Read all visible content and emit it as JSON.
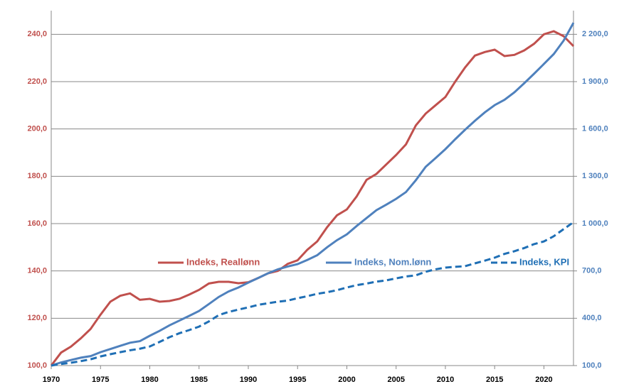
{
  "chart_data": {
    "type": "line",
    "x": [
      1970,
      1971,
      1972,
      1973,
      1974,
      1975,
      1976,
      1977,
      1978,
      1979,
      1980,
      1981,
      1982,
      1983,
      1984,
      1985,
      1986,
      1987,
      1988,
      1989,
      1990,
      1991,
      1992,
      1993,
      1994,
      1995,
      1996,
      1997,
      1998,
      1999,
      2000,
      2001,
      2002,
      2003,
      2004,
      2005,
      2006,
      2007,
      2008,
      2009,
      2010,
      2011,
      2012,
      2013,
      2014,
      2015,
      2016,
      2017,
      2018,
      2019,
      2020,
      2021,
      2022,
      2023
    ],
    "xlim": [
      1970,
      2023
    ],
    "xticks": [
      1970,
      1975,
      1980,
      1985,
      1990,
      1995,
      2000,
      2005,
      2010,
      2015,
      2020
    ],
    "ylim": [
      100,
      250
    ],
    "yticks": [
      {
        "value": 100,
        "label": "100,0"
      },
      {
        "value": 120,
        "label": "120,0"
      },
      {
        "value": 140,
        "label": "140,0"
      },
      {
        "value": 160,
        "label": "160,0"
      },
      {
        "value": 180,
        "label": "180,0"
      },
      {
        "value": 200,
        "label": "200,0"
      },
      {
        "value": 220,
        "label": "220,0"
      },
      {
        "value": 240,
        "label": "240,0"
      }
    ],
    "y2lim": [
      100,
      2350
    ],
    "y2ticks": [
      {
        "value": 100,
        "label": "100,0"
      },
      {
        "value": 400,
        "label": "400,0"
      },
      {
        "value": 700,
        "label": "700,0"
      },
      {
        "value": 1000,
        "label": "1 000,0"
      },
      {
        "value": 1300,
        "label": "1 300,0"
      },
      {
        "value": 1600,
        "label": "1 600,0"
      },
      {
        "value": 1900,
        "label": "1 900,0"
      },
      {
        "value": 2200,
        "label": "2 200,0"
      }
    ],
    "grid": true,
    "series": [
      {
        "name": "Indeks, Reallønn",
        "color": "#c0504d",
        "axis": "y",
        "line_style": "solid",
        "values": [
          100,
          105.5,
          108,
          111.5,
          115.5,
          121.5,
          127,
          129.5,
          130.5,
          127.8,
          128.2,
          127,
          127.3,
          128.2,
          130,
          132,
          134.7,
          135.4,
          135.4,
          134.8,
          135.2,
          137,
          139,
          140,
          143,
          144.5,
          149,
          152.5,
          158.5,
          163.5,
          166,
          171.5,
          178.5,
          181,
          185,
          189,
          193.5,
          201.5,
          206.5,
          210,
          213.5,
          220,
          226,
          231,
          232.5,
          233.5,
          230.8,
          231.3,
          233.2,
          236,
          240,
          241.3,
          239.2,
          235
        ]
      },
      {
        "name": "Indeks, Nom.lønn",
        "color": "#4f81bd",
        "axis": "y2",
        "line_style": "solid",
        "values": [
          100,
          120,
          135,
          150,
          160,
          185,
          205,
          225,
          245,
          255,
          289,
          320,
          355,
          385,
          415,
          446,
          490,
          535,
          570,
          595,
          626,
          655,
          685,
          710,
          728,
          743,
          770,
          800,
          850,
          895,
          932,
          985,
          1035,
          1085,
          1120,
          1157,
          1200,
          1275,
          1360,
          1415,
          1472,
          1535,
          1595,
          1652,
          1705,
          1751,
          1785,
          1832,
          1890,
          1950,
          2012,
          2075,
          2160,
          2273
        ]
      },
      {
        "name": "Indeks, KPI",
        "color": "#1f6fb5",
        "axis": "y2",
        "line_style": "dashed",
        "values": [
          100,
          110,
          118,
          128,
          140,
          158,
          172,
          185,
          197,
          207,
          221,
          250,
          280,
          305,
          325,
          347,
          380,
          420,
          440,
          455,
          469,
          485,
          495,
          505,
          512,
          527,
          540,
          555,
          565,
          578,
          595,
          610,
          620,
          632,
          640,
          653,
          665,
          672,
          695,
          710,
          721,
          726,
          730,
          748,
          765,
          784,
          808,
          825,
          845,
          870,
          887,
          920,
          965,
          1009
        ]
      }
    ]
  }
}
